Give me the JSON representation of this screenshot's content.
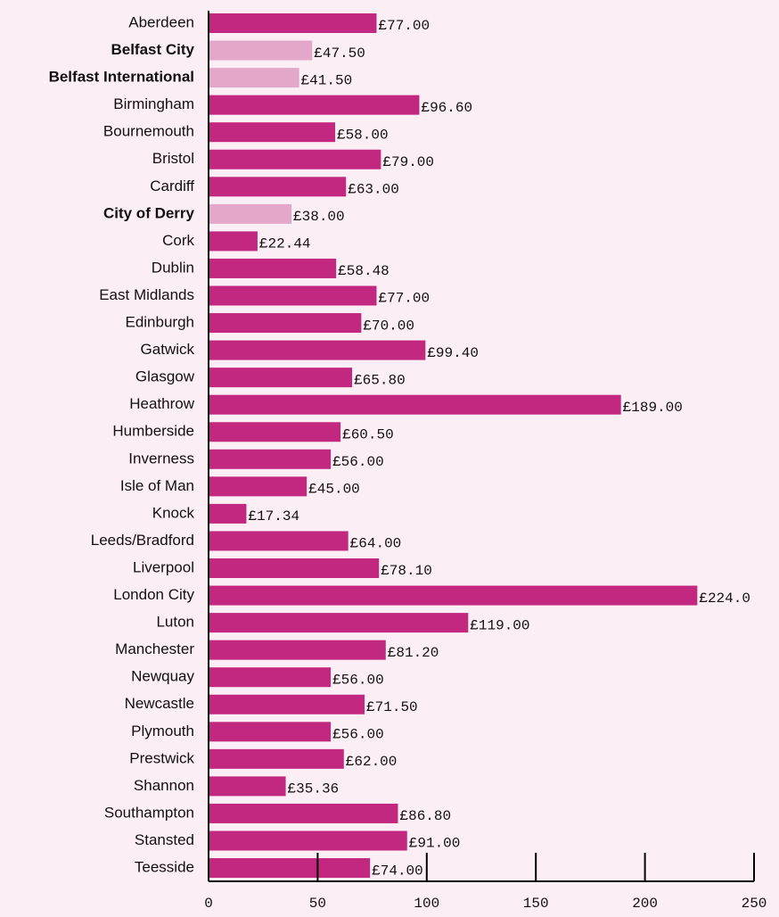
{
  "chart_data": {
    "type": "bar",
    "orientation": "horizontal",
    "categories": [
      "Aberdeen",
      "Belfast City",
      "Belfast International",
      "Birmingham",
      "Bournemouth",
      "Bristol",
      "Cardiff",
      "City of Derry",
      "Cork",
      "Dublin",
      "East Midlands",
      "Edinburgh",
      "Gatwick",
      "Glasgow",
      "Heathrow",
      "Humberside",
      "Inverness",
      "Isle of Man",
      "Knock",
      "Leeds/Bradford",
      "Liverpool",
      "London City",
      "Luton",
      "Manchester",
      "Newquay",
      "Newcastle",
      "Plymouth",
      "Prestwick",
      "Shannon",
      "Southampton",
      "Stansted",
      "Teesside"
    ],
    "values": [
      77,
      47.5,
      41.5,
      96.6,
      58,
      79,
      63,
      38,
      22.44,
      58.48,
      77,
      70,
      99.4,
      65.8,
      189,
      60.5,
      56,
      45,
      17.34,
      64,
      78.1,
      224,
      119,
      81.2,
      56,
      71.5,
      56,
      62,
      35.36,
      86.8,
      91,
      74
    ],
    "value_labels": [
      "£77.00",
      "£47.50",
      "£41.50",
      "£96.60",
      "£58.00",
      "£79.00",
      "£63.00",
      "£38.00",
      "£22.44",
      "£58.48",
      "£77.00",
      "£70.00",
      "£99.40",
      "£65.80",
      "£189.00",
      "£60.50",
      "£56.00",
      "£45.00",
      "£17.34",
      "£64.00",
      "£78.10",
      "£224.0",
      "£119.00",
      "£81.20",
      "£56.00",
      "£71.50",
      "£56.00",
      "£62.00",
      "£35.36",
      "£86.80",
      "£91.00",
      "£74.00"
    ],
    "color": "#c2287f",
    "colors": [
      "#c2287f",
      "#e3a8c9",
      "#e3a8c9",
      "#c2287f",
      "#c2287f",
      "#c2287f",
      "#c2287f",
      "#e3a8c9",
      "#c2287f",
      "#c2287f",
      "#c2287f",
      "#c2287f",
      "#c2287f",
      "#c2287f",
      "#c2287f",
      "#c2287f",
      "#c2287f",
      "#c2287f",
      "#c2287f",
      "#c2287f",
      "#c2287f",
      "#c2287f",
      "#c2287f",
      "#c2287f",
      "#c2287f",
      "#c2287f",
      "#c2287f",
      "#c2287f",
      "#c2287f",
      "#c2287f",
      "#c2287f",
      "#c2287f"
    ],
    "xlim": [
      0,
      250
    ],
    "xticks": [
      0,
      50,
      100,
      150,
      200,
      250
    ]
  }
}
